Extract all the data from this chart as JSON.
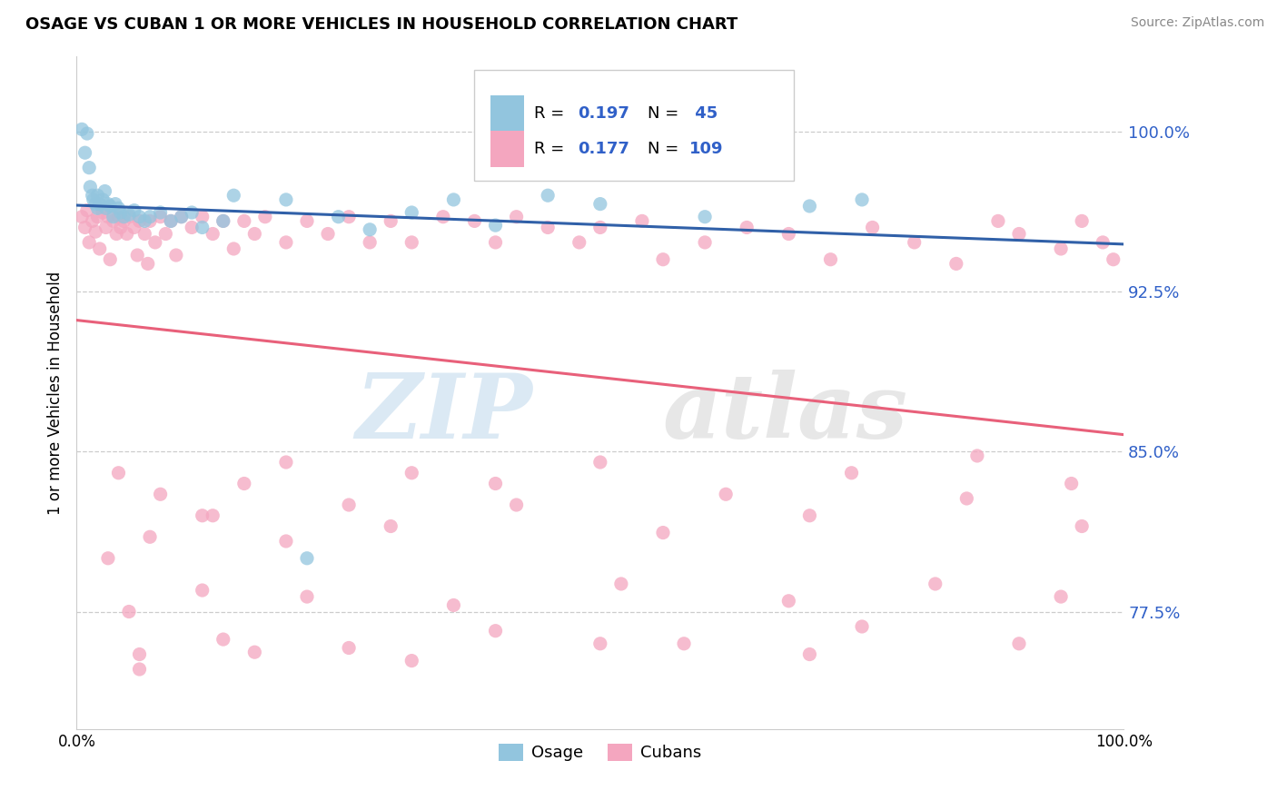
{
  "title": "OSAGE VS CUBAN 1 OR MORE VEHICLES IN HOUSEHOLD CORRELATION CHART",
  "source": "Source: ZipAtlas.com",
  "ylabel": "1 or more Vehicles in Household",
  "xlim": [
    0,
    1
  ],
  "ylim": [
    0.72,
    1.035
  ],
  "yticks": [
    0.775,
    0.85,
    0.925,
    1.0
  ],
  "ytick_labels": [
    "77.5%",
    "85.0%",
    "92.5%",
    "100.0%"
  ],
  "legend_labels": [
    "Osage",
    "Cubans"
  ],
  "osage_color": "#92c5de",
  "cuban_color": "#f4a6bf",
  "osage_line_color": "#3060a8",
  "cuban_line_color": "#e8607a",
  "background_color": "#ffffff",
  "osage_x": [
    0.005,
    0.008,
    0.01,
    0.012,
    0.013,
    0.015,
    0.016,
    0.018,
    0.02,
    0.02,
    0.022,
    0.025,
    0.027,
    0.028,
    0.03,
    0.032,
    0.035,
    0.037,
    0.04,
    0.042,
    0.045,
    0.05,
    0.055,
    0.06,
    0.065,
    0.07,
    0.08,
    0.09,
    0.1,
    0.11,
    0.12,
    0.14,
    0.15,
    0.2,
    0.22,
    0.25,
    0.28,
    0.32,
    0.36,
    0.4,
    0.45,
    0.5,
    0.6,
    0.7,
    0.75
  ],
  "osage_y": [
    1.001,
    0.99,
    0.999,
    0.983,
    0.974,
    0.97,
    0.968,
    0.966,
    0.964,
    0.97,
    0.966,
    0.968,
    0.972,
    0.964,
    0.966,
    0.965,
    0.96,
    0.966,
    0.964,
    0.962,
    0.96,
    0.961,
    0.963,
    0.96,
    0.958,
    0.96,
    0.962,
    0.958,
    0.96,
    0.962,
    0.955,
    0.958,
    0.97,
    0.968,
    0.8,
    0.96,
    0.954,
    0.962,
    0.968,
    0.956,
    0.97,
    0.966,
    0.96,
    0.965,
    0.968
  ],
  "cuban_x": [
    0.005,
    0.008,
    0.01,
    0.012,
    0.015,
    0.018,
    0.02,
    0.022,
    0.025,
    0.028,
    0.03,
    0.032,
    0.035,
    0.038,
    0.04,
    0.042,
    0.045,
    0.048,
    0.05,
    0.055,
    0.058,
    0.06,
    0.065,
    0.068,
    0.07,
    0.075,
    0.08,
    0.085,
    0.09,
    0.095,
    0.1,
    0.11,
    0.12,
    0.13,
    0.14,
    0.15,
    0.16,
    0.17,
    0.18,
    0.2,
    0.22,
    0.24,
    0.26,
    0.28,
    0.3,
    0.32,
    0.35,
    0.38,
    0.4,
    0.42,
    0.45,
    0.48,
    0.5,
    0.54,
    0.56,
    0.6,
    0.64,
    0.68,
    0.72,
    0.76,
    0.8,
    0.84,
    0.88,
    0.9,
    0.94,
    0.96,
    0.98,
    0.99,
    0.04,
    0.08,
    0.12,
    0.16,
    0.2,
    0.26,
    0.32,
    0.4,
    0.5,
    0.62,
    0.74,
    0.86,
    0.95,
    0.03,
    0.07,
    0.13,
    0.2,
    0.3,
    0.42,
    0.56,
    0.7,
    0.85,
    0.96,
    0.05,
    0.12,
    0.22,
    0.36,
    0.52,
    0.68,
    0.82,
    0.94,
    0.06,
    0.14,
    0.26,
    0.4,
    0.58,
    0.75,
    0.9,
    0.06,
    0.17,
    0.32,
    0.5,
    0.7
  ],
  "cuban_y": [
    0.96,
    0.955,
    0.963,
    0.948,
    0.958,
    0.953,
    0.96,
    0.945,
    0.962,
    0.955,
    0.96,
    0.94,
    0.958,
    0.952,
    0.96,
    0.955,
    0.958,
    0.952,
    0.96,
    0.955,
    0.942,
    0.958,
    0.952,
    0.938,
    0.958,
    0.948,
    0.96,
    0.952,
    0.958,
    0.942,
    0.96,
    0.955,
    0.96,
    0.952,
    0.958,
    0.945,
    0.958,
    0.952,
    0.96,
    0.948,
    0.958,
    0.952,
    0.96,
    0.948,
    0.958,
    0.948,
    0.96,
    0.958,
    0.948,
    0.96,
    0.955,
    0.948,
    0.955,
    0.958,
    0.94,
    0.948,
    0.955,
    0.952,
    0.94,
    0.955,
    0.948,
    0.938,
    0.958,
    0.952,
    0.945,
    0.958,
    0.948,
    0.94,
    0.84,
    0.83,
    0.82,
    0.835,
    0.845,
    0.825,
    0.84,
    0.835,
    0.845,
    0.83,
    0.84,
    0.848,
    0.835,
    0.8,
    0.81,
    0.82,
    0.808,
    0.815,
    0.825,
    0.812,
    0.82,
    0.828,
    0.815,
    0.775,
    0.785,
    0.782,
    0.778,
    0.788,
    0.78,
    0.788,
    0.782,
    0.755,
    0.762,
    0.758,
    0.766,
    0.76,
    0.768,
    0.76,
    0.748,
    0.756,
    0.752,
    0.76,
    0.755
  ]
}
